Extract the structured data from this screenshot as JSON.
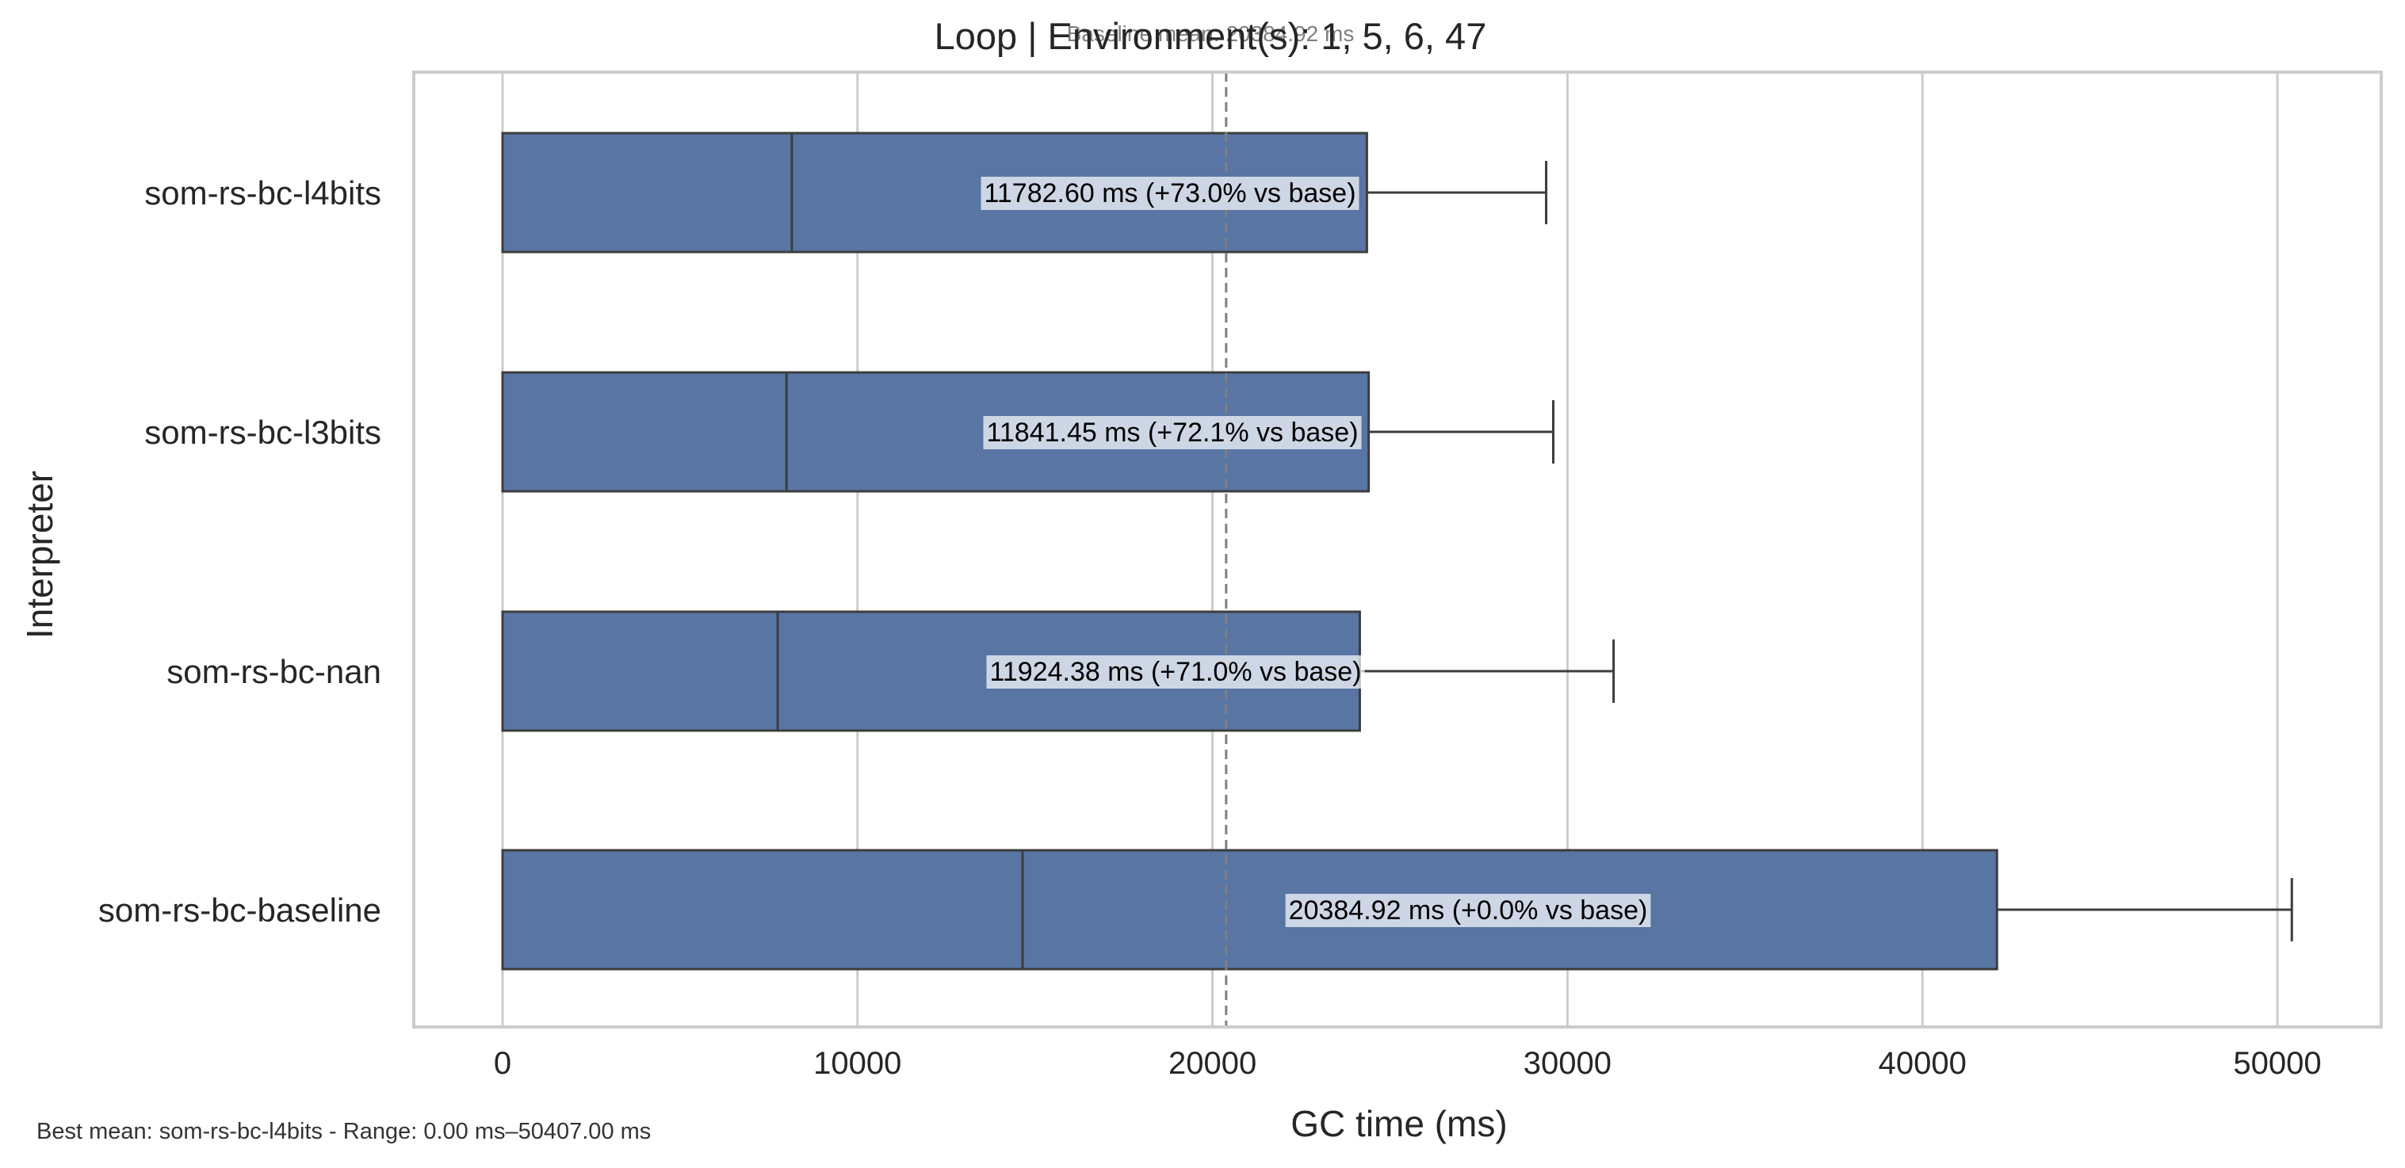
{
  "chart_data": {
    "type": "bar",
    "orientation": "horizontal",
    "title": "Loop | Environment(s): 1, 5, 6, 47",
    "baseline_note": "Baseline mean: 20384.92 ms",
    "xlabel": "GC time (ms)",
    "ylabel": "Interpreter",
    "footer": "Best mean: som-rs-bc-l4bits - Range: 0.00 ms–50407.00 ms",
    "xlim": [
      -2500,
      53000
    ],
    "xticks": [
      0,
      10000,
      20000,
      30000,
      40000,
      50000
    ],
    "xtick_labels": [
      "0",
      "10000",
      "20000",
      "30000",
      "40000",
      "50000"
    ],
    "grid": "vertical",
    "baseline_x": 20384.92,
    "bar_color": "#5975a4",
    "categories": [
      "som-rs-bc-l4bits",
      "som-rs-bc-l3bits",
      "som-rs-bc-nan",
      "som-rs-bc-baseline"
    ],
    "boxes": [
      {
        "category": "som-rs-bc-l4bits",
        "low": 0,
        "median": 8150,
        "high": 24350,
        "whisker": 29400,
        "label": "11782.60 ms  (+73.0% vs base)"
      },
      {
        "category": "som-rs-bc-l3bits",
        "low": 0,
        "median": 8000,
        "high": 24400,
        "whisker": 29600,
        "label": "11841.45 ms  (+72.1% vs base)"
      },
      {
        "category": "som-rs-bc-nan",
        "low": 0,
        "median": 7750,
        "high": 24150,
        "whisker": 31300,
        "label": "11924.38 ms  (+71.0% vs base)"
      },
      {
        "category": "som-rs-bc-baseline",
        "low": 0,
        "median": 14650,
        "high": 42100,
        "whisker": 50407,
        "label": "20384.92 ms  (+0.0% vs base)"
      }
    ]
  }
}
